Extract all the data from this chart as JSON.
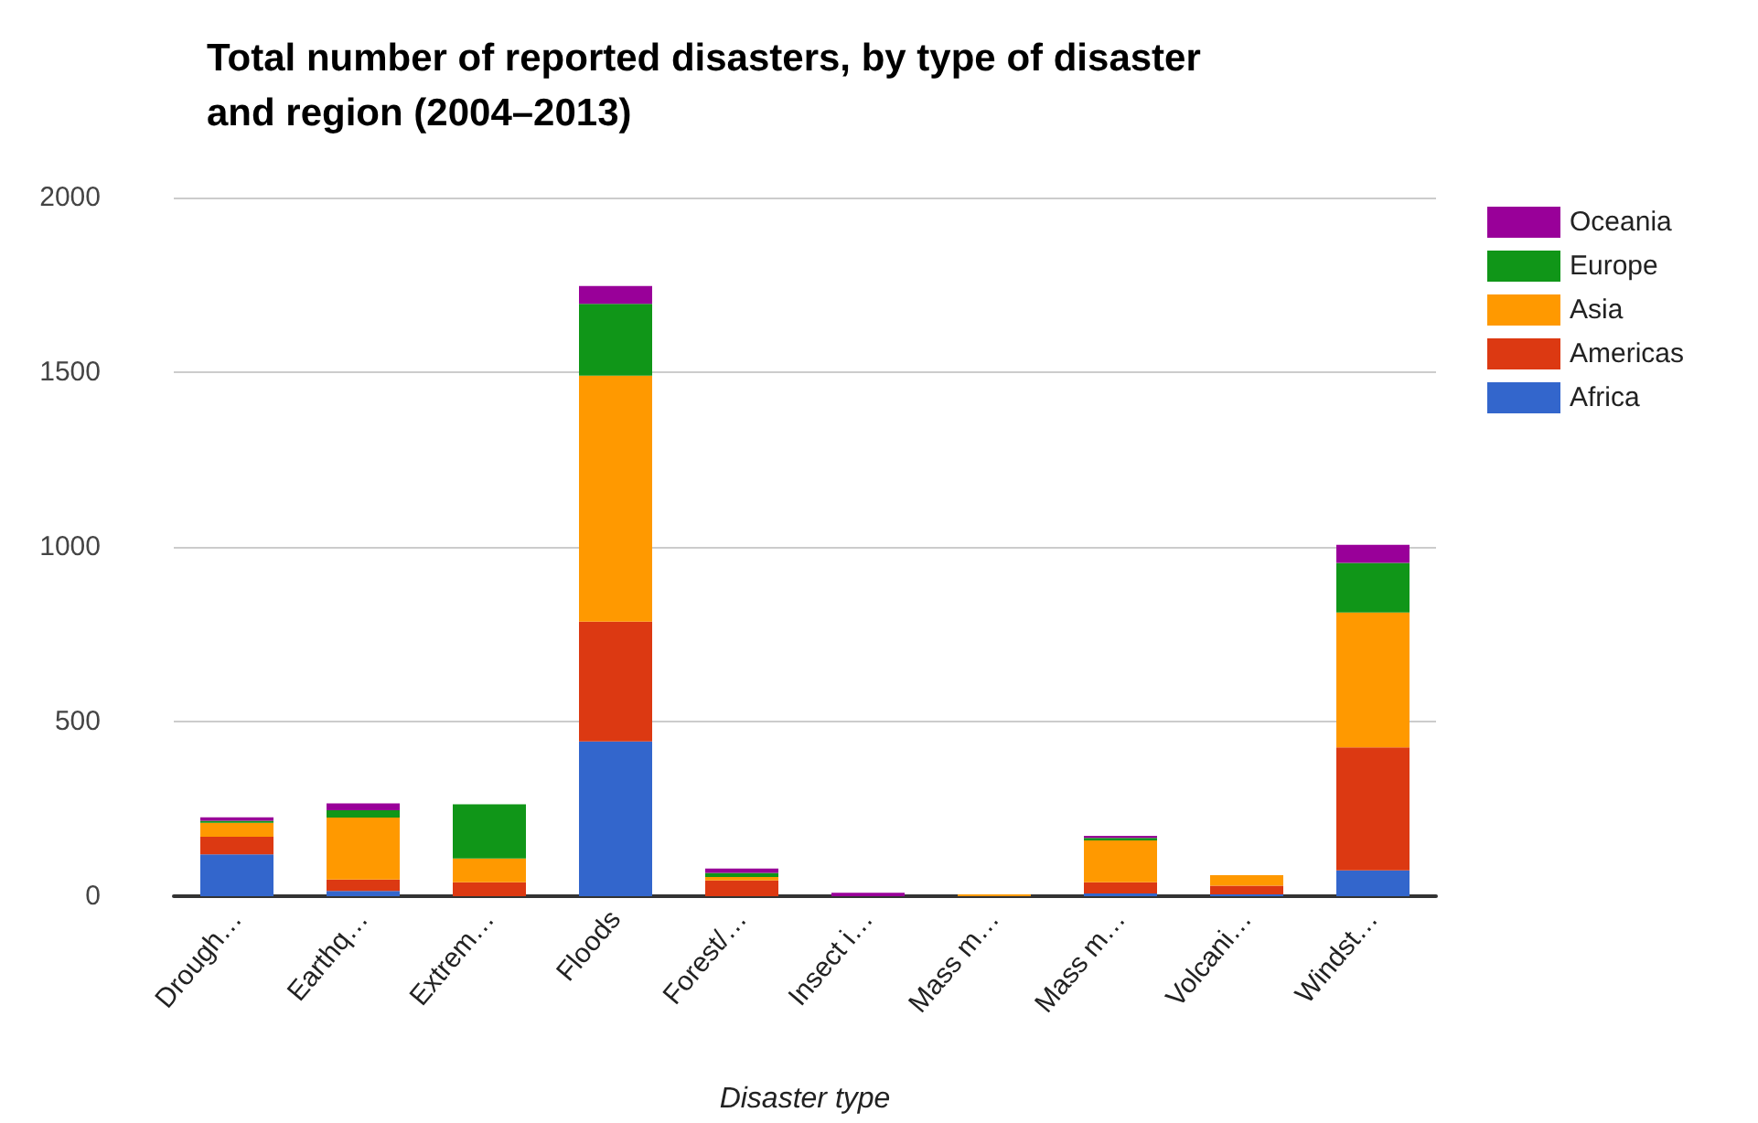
{
  "chart_data": {
    "type": "bar",
    "stacked": true,
    "title": "Total number of reported disasters, by type of disaster and region (2004–2013)",
    "xlabel": "Disaster type",
    "categories": [
      "Drough…",
      "Earthq…",
      "Extrem…",
      "Floods",
      "Forest/…",
      "Insect i…",
      "Mass m…",
      "Mass m…",
      "Volcani…",
      "Windst…"
    ],
    "series": [
      {
        "name": "Africa",
        "color": "#3366cc",
        "values": [
          120,
          15,
          null,
          443,
          null,
          null,
          null,
          8,
          5,
          74
        ]
      },
      {
        "name": "Americas",
        "color": "#dc3912",
        "values": [
          50,
          33,
          40,
          343,
          45,
          null,
          null,
          32,
          25,
          352
        ]
      },
      {
        "name": "Asia",
        "color": "#ff9900",
        "values": [
          40,
          177,
          68,
          704,
          10,
          null,
          5,
          120,
          30,
          386
        ]
      },
      {
        "name": "Europe",
        "color": "#109618",
        "values": [
          6,
          21,
          155,
          206,
          12,
          null,
          null,
          7,
          null,
          142
        ]
      },
      {
        "name": "Oceania",
        "color": "#990099",
        "values": [
          10,
          20,
          null,
          51,
          12,
          10,
          null,
          6,
          null,
          52
        ]
      }
    ],
    "ylim": [
      0,
      2000
    ],
    "yticks": [
      0,
      500,
      1000,
      1500,
      2000
    ],
    "grid": "y",
    "legend": "top right"
  }
}
